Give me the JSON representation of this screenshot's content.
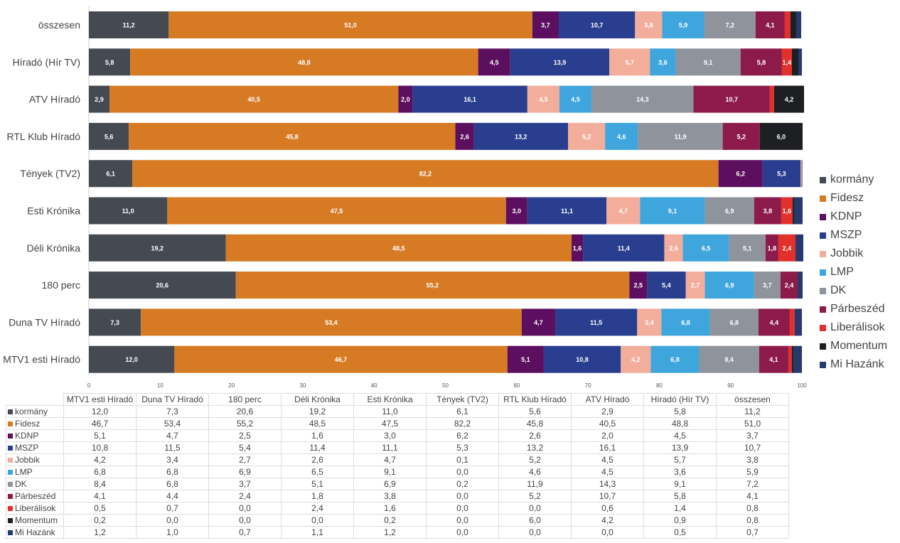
{
  "chart_data": {
    "type": "bar",
    "orientation": "horizontal-stacked",
    "title": "",
    "xlabel": "",
    "ylabel": "",
    "xlim": [
      0,
      100
    ],
    "xticks": [
      "0",
      "10",
      "20",
      "30",
      "40",
      "50",
      "60",
      "70",
      "80",
      "90",
      "100"
    ],
    "categories": [
      "MTV1 esti Híradó",
      "Duna TV Híradó",
      "180 perc",
      "Déli Krónika",
      "Esti Krónika",
      "Tények (TV2)",
      "RTL Klub Híradó",
      "ATV Híradó",
      "Híradó (Hír TV)",
      "összesen"
    ],
    "legend_position": "right",
    "series": [
      {
        "name": "kormány",
        "color": "#454a52",
        "values": [
          "12,0",
          "7,3",
          "20,6",
          "19,2",
          "11,0",
          "6,1",
          "5,6",
          "2,9",
          "5,8",
          "11,2"
        ]
      },
      {
        "name": "Fidesz",
        "color": "#d67a24",
        "values": [
          "46,7",
          "53,4",
          "55,2",
          "48,5",
          "47,5",
          "82,2",
          "45,8",
          "40,5",
          "48,8",
          "51,0"
        ]
      },
      {
        "name": "KDNP",
        "color": "#5c0f5e",
        "values": [
          "5,1",
          "4,7",
          "2,5",
          "1,6",
          "3,0",
          "6,2",
          "2,6",
          "2,0",
          "4,5",
          "3,7"
        ]
      },
      {
        "name": "MSZP",
        "color": "#293e8e",
        "values": [
          "10,8",
          "11,5",
          "5,4",
          "11,4",
          "11,1",
          "5,3",
          "13,2",
          "16,1",
          "13,9",
          "10,7"
        ]
      },
      {
        "name": "Jobbik",
        "color": "#f2ad9b",
        "values": [
          "4,2",
          "3,4",
          "2,7",
          "2,6",
          "4,7",
          "0,1",
          "5,2",
          "4,5",
          "5,7",
          "3,8"
        ]
      },
      {
        "name": "LMP",
        "color": "#3ea5dd",
        "values": [
          "6,8",
          "6,8",
          "6,9",
          "6,5",
          "9,1",
          "0,0",
          "4,6",
          "4,5",
          "3,6",
          "5,9"
        ]
      },
      {
        "name": "DK",
        "color": "#8f939b",
        "values": [
          "8,4",
          "6,8",
          "3,7",
          "5,1",
          "6,9",
          "0,2",
          "11,9",
          "14,3",
          "9,1",
          "7,2"
        ]
      },
      {
        "name": "Párbeszéd",
        "color": "#8c1a4b",
        "values": [
          "4,1",
          "4,4",
          "2,4",
          "1,8",
          "3,8",
          "0,0",
          "5,2",
          "10,7",
          "5,8",
          "4,1"
        ]
      },
      {
        "name": "Liberálisok",
        "color": "#e2302a",
        "values": [
          "0,5",
          "0,7",
          "0,0",
          "2,4",
          "1,6",
          "0,0",
          "0,0",
          "0,6",
          "1,4",
          "0,8"
        ]
      },
      {
        "name": "Momentum",
        "color": "#1d1f22",
        "values": [
          "0,2",
          "0,0",
          "0,0",
          "0,0",
          "0,2",
          "0,0",
          "6,0",
          "4,2",
          "0,9",
          "0,8"
        ]
      },
      {
        "name": "Mi Hazánk",
        "color": "#25396f",
        "values": [
          "1,2",
          "1,0",
          "0,7",
          "1,1",
          "1,2",
          "0,0",
          "0,0",
          "0,0",
          "0,5",
          "0,7"
        ]
      }
    ]
  }
}
